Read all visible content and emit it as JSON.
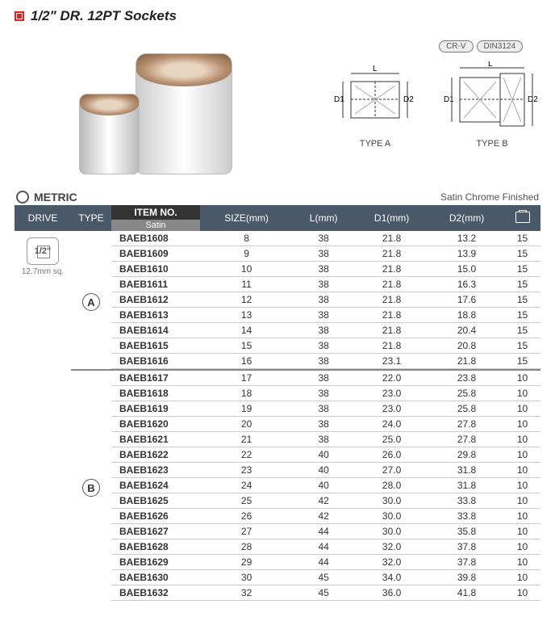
{
  "title": "1/2\" DR. 12PT Sockets",
  "badges": [
    "CR-V",
    "DIN3124"
  ],
  "diagram_labels": {
    "a": "TYPE A",
    "b": "TYPE B",
    "l": "L",
    "d1": "D1",
    "d2": "D2"
  },
  "metric_label": "METRIC",
  "finish": "Satin Chrome Finished",
  "headers": {
    "drive": "DRIVE",
    "type": "TYPE",
    "itemno": "ITEM NO.",
    "satin": "Satin",
    "size": "SIZE(mm)",
    "l": "L(mm)",
    "d1": "D1(mm)",
    "d2": "D2(mm)"
  },
  "drive": {
    "label": "1/2\"",
    "sub": "12.7mm sq."
  },
  "groups": [
    {
      "type_label": "A",
      "rows": [
        {
          "no": "BAEB1608",
          "size": "8",
          "l": "38",
          "d1": "21.8",
          "d2": "13.2",
          "box": "15"
        },
        {
          "no": "BAEB1609",
          "size": "9",
          "l": "38",
          "d1": "21.8",
          "d2": "13.9",
          "box": "15"
        },
        {
          "no": "BAEB1610",
          "size": "10",
          "l": "38",
          "d1": "21.8",
          "d2": "15.0",
          "box": "15"
        },
        {
          "no": "BAEB1611",
          "size": "11",
          "l": "38",
          "d1": "21.8",
          "d2": "16.3",
          "box": "15"
        },
        {
          "no": "BAEB1612",
          "size": "12",
          "l": "38",
          "d1": "21.8",
          "d2": "17.6",
          "box": "15"
        },
        {
          "no": "BAEB1613",
          "size": "13",
          "l": "38",
          "d1": "21.8",
          "d2": "18.8",
          "box": "15"
        },
        {
          "no": "BAEB1614",
          "size": "14",
          "l": "38",
          "d1": "21.8",
          "d2": "20.4",
          "box": "15"
        },
        {
          "no": "BAEB1615",
          "size": "15",
          "l": "38",
          "d1": "21.8",
          "d2": "20.8",
          "box": "15"
        },
        {
          "no": "BAEB1616",
          "size": "16",
          "l": "38",
          "d1": "23.1",
          "d2": "21.8",
          "box": "15"
        }
      ]
    },
    {
      "type_label": "B",
      "rows": [
        {
          "no": "BAEB1617",
          "size": "17",
          "l": "38",
          "d1": "22.0",
          "d2": "23.8",
          "box": "10"
        },
        {
          "no": "BAEB1618",
          "size": "18",
          "l": "38",
          "d1": "23.0",
          "d2": "25.8",
          "box": "10"
        },
        {
          "no": "BAEB1619",
          "size": "19",
          "l": "38",
          "d1": "23.0",
          "d2": "25.8",
          "box": "10"
        },
        {
          "no": "BAEB1620",
          "size": "20",
          "l": "38",
          "d1": "24.0",
          "d2": "27.8",
          "box": "10"
        },
        {
          "no": "BAEB1621",
          "size": "21",
          "l": "38",
          "d1": "25.0",
          "d2": "27.8",
          "box": "10"
        },
        {
          "no": "BAEB1622",
          "size": "22",
          "l": "40",
          "d1": "26.0",
          "d2": "29.8",
          "box": "10"
        },
        {
          "no": "BAEB1623",
          "size": "23",
          "l": "40",
          "d1": "27.0",
          "d2": "31.8",
          "box": "10"
        },
        {
          "no": "BAEB1624",
          "size": "24",
          "l": "40",
          "d1": "28.0",
          "d2": "31.8",
          "box": "10"
        },
        {
          "no": "BAEB1625",
          "size": "25",
          "l": "42",
          "d1": "30.0",
          "d2": "33.8",
          "box": "10"
        },
        {
          "no": "BAEB1626",
          "size": "26",
          "l": "42",
          "d1": "30.0",
          "d2": "33.8",
          "box": "10"
        },
        {
          "no": "BAEB1627",
          "size": "27",
          "l": "44",
          "d1": "30.0",
          "d2": "35.8",
          "box": "10"
        },
        {
          "no": "BAEB1628",
          "size": "28",
          "l": "44",
          "d1": "32.0",
          "d2": "37.8",
          "box": "10"
        },
        {
          "no": "BAEB1629",
          "size": "29",
          "l": "44",
          "d1": "32.0",
          "d2": "37.8",
          "box": "10"
        },
        {
          "no": "BAEB1630",
          "size": "30",
          "l": "45",
          "d1": "34.0",
          "d2": "39.8",
          "box": "10"
        },
        {
          "no": "BAEB1632",
          "size": "32",
          "l": "45",
          "d1": "36.0",
          "d2": "41.8",
          "box": "10"
        }
      ]
    }
  ],
  "colors": {
    "header_bg": "#4a596a",
    "itemno_bg": "#333333",
    "satin_bg": "#888888",
    "border": "#cccccc"
  }
}
